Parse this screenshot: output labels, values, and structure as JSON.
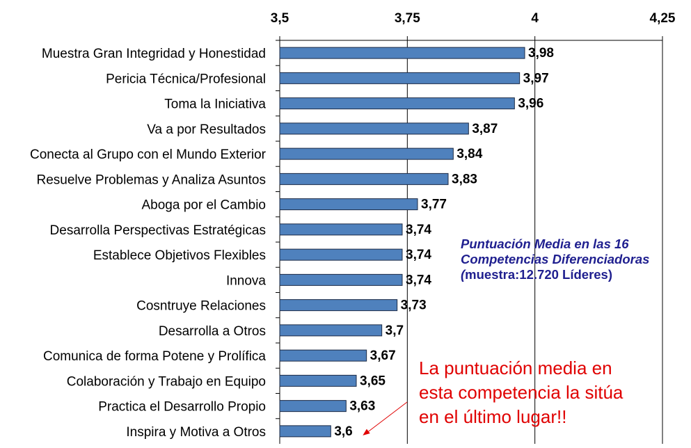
{
  "chart_data": {
    "type": "bar",
    "orientation": "horizontal",
    "categories": [
      "Muestra Gran Integridad y Honestidad",
      "Pericia Técnica/Profesional",
      "Toma la Iniciativa",
      "Va a por Resultados",
      "Conecta al Grupo con el Mundo Exterior",
      "Resuelve Problemas y Analiza Asuntos",
      "Aboga por el Cambio",
      "Desarrolla Perspectivas Estratégicas",
      "Establece Objetivos Flexibles",
      "Innova",
      "Cosntruye Relaciones",
      "Desarrolla a Otros",
      "Comunica de forma Potene y Prolífica",
      "Colaboración y Trabajo en Equipo",
      "Practica el Desarrollo Propio",
      "Inspira y Motiva a Otros"
    ],
    "values": [
      3.98,
      3.97,
      3.96,
      3.87,
      3.84,
      3.83,
      3.77,
      3.74,
      3.74,
      3.74,
      3.73,
      3.7,
      3.67,
      3.65,
      3.63,
      3.6
    ],
    "value_labels": [
      "3,98",
      "3,97",
      "3,96",
      "3,87",
      "3,84",
      "3,83",
      "3,77",
      "3,74",
      "3,74",
      "3,74",
      "3,73",
      "3,7",
      "3,67",
      "3,65",
      "3,63",
      "3,6"
    ],
    "xlim": [
      3.5,
      4.25
    ],
    "xticks": [
      3.5,
      3.75,
      4,
      4.25
    ],
    "xtick_labels": [
      "3,5",
      "3,75",
      "4",
      "4,25"
    ],
    "axis_position": "top",
    "grid": "vertical",
    "bar_color": "#4f81bd",
    "annotation_color": "#e00000",
    "note_color": "#1f1f8f"
  },
  "note": {
    "line1": "Puntuación Media en las 16",
    "line2": "Competencias Diferenciadoras",
    "line3_paren": "(",
    "line3_rest": "muestra:12.720 Líderes)"
  },
  "callout": {
    "line1": "La puntuación media en",
    "line2": "esta competencia la sitúa",
    "line3": "en el último lugar!!"
  }
}
